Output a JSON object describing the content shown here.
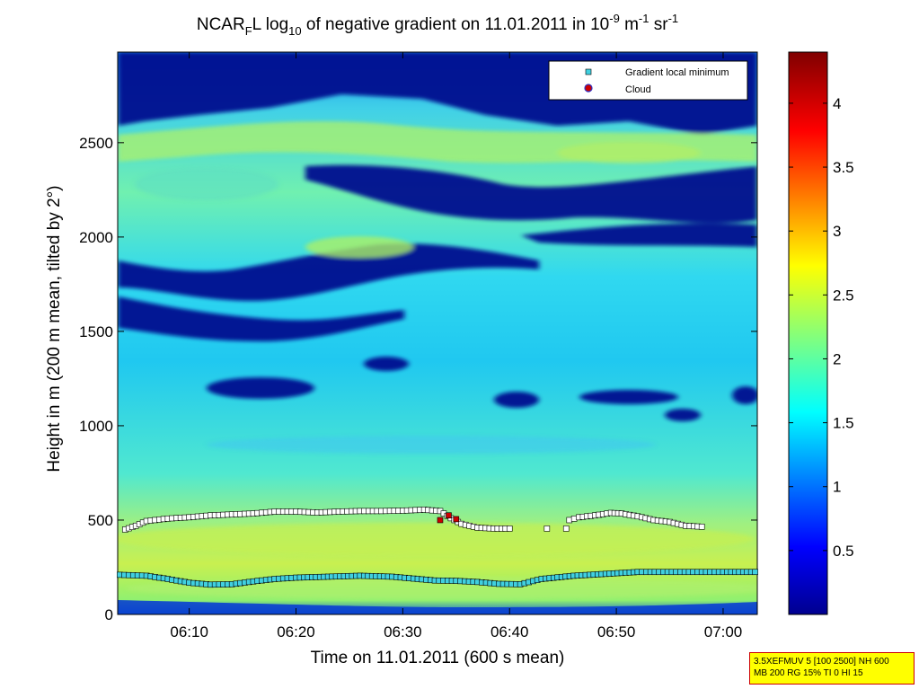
{
  "chart_data": {
    "type": "heatmap",
    "title": {
      "prefix": "NCAR",
      "sub1": "F",
      "mid": "L log",
      "sub2": "10",
      "suffix": " of negative gradient on 11.01.2011 in 10",
      "sup1": "-9",
      "unit1": " m",
      "sup2": "-1",
      "unit2": " sr",
      "sup3": "-1"
    },
    "xlabel": "Time on 11.01.2011 (600 s mean)",
    "ylabel": "Height in m (200 m mean, tilted by 2°)",
    "xlim_minutes": [
      363.3,
      423.2
    ],
    "ylim": [
      0,
      2980
    ],
    "x_ticks": [
      {
        "minutes": 370,
        "label": "06:10"
      },
      {
        "minutes": 380,
        "label": "06:20"
      },
      {
        "minutes": 390,
        "label": "06:30"
      },
      {
        "minutes": 400,
        "label": "06:40"
      },
      {
        "minutes": 410,
        "label": "06:50"
      },
      {
        "minutes": 420,
        "label": "07:00"
      }
    ],
    "y_ticks": [
      0,
      500,
      1000,
      1500,
      2000,
      2500
    ],
    "colorbar": {
      "range": [
        0,
        4.4
      ],
      "ticks": [
        "0.5",
        "1",
        "1.5",
        "2",
        "2.5",
        "3",
        "3.5",
        "4"
      ],
      "colormap": "jet"
    },
    "legend": {
      "position": "top-right",
      "entries": [
        {
          "label": "Gradient local minimum",
          "marker": "square",
          "color": "#40d0e0"
        },
        {
          "label": "Cloud",
          "marker": "circle",
          "color": "#cc0000"
        }
      ]
    },
    "low_layer_minimum": [
      {
        "t": 363.5,
        "h": 210
      },
      {
        "t": 366,
        "h": 205
      },
      {
        "t": 368,
        "h": 188
      },
      {
        "t": 370,
        "h": 168
      },
      {
        "t": 372,
        "h": 158
      },
      {
        "t": 374,
        "h": 160
      },
      {
        "t": 376,
        "h": 175
      },
      {
        "t": 378,
        "h": 188
      },
      {
        "t": 380,
        "h": 195
      },
      {
        "t": 383,
        "h": 200
      },
      {
        "t": 386,
        "h": 205
      },
      {
        "t": 389,
        "h": 200
      },
      {
        "t": 391,
        "h": 190
      },
      {
        "t": 393,
        "h": 180
      },
      {
        "t": 395,
        "h": 178
      },
      {
        "t": 397,
        "h": 172
      },
      {
        "t": 399,
        "h": 162
      },
      {
        "t": 401,
        "h": 160
      },
      {
        "t": 403,
        "h": 188
      },
      {
        "t": 406,
        "h": 205
      },
      {
        "t": 409,
        "h": 215
      },
      {
        "t": 412,
        "h": 225
      },
      {
        "t": 416,
        "h": 225
      },
      {
        "t": 420,
        "h": 225
      },
      {
        "t": 423,
        "h": 225
      }
    ],
    "upper_minimum_segment1": [
      {
        "t": 364,
        "h": 450
      },
      {
        "t": 365,
        "h": 470
      },
      {
        "t": 366,
        "h": 495
      },
      {
        "t": 368,
        "h": 508
      },
      {
        "t": 370,
        "h": 515
      },
      {
        "t": 372,
        "h": 525
      },
      {
        "t": 374,
        "h": 530
      },
      {
        "t": 376,
        "h": 535
      },
      {
        "t": 378,
        "h": 545
      },
      {
        "t": 380,
        "h": 545
      },
      {
        "t": 382,
        "h": 540
      },
      {
        "t": 384,
        "h": 545
      },
      {
        "t": 386,
        "h": 548
      },
      {
        "t": 388,
        "h": 548
      },
      {
        "t": 390,
        "h": 550
      },
      {
        "t": 392,
        "h": 555
      },
      {
        "t": 393.5,
        "h": 548
      },
      {
        "t": 394.5,
        "h": 510
      },
      {
        "t": 395.5,
        "h": 480
      },
      {
        "t": 397,
        "h": 460
      },
      {
        "t": 398.5,
        "h": 455
      },
      {
        "t": 400,
        "h": 455
      }
    ],
    "upper_minimum_isolated": [
      {
        "t": 403.5,
        "h": 455
      },
      {
        "t": 405.3,
        "h": 455
      }
    ],
    "upper_minimum_segment2": [
      {
        "t": 405.6,
        "h": 500
      },
      {
        "t": 406.5,
        "h": 515
      },
      {
        "t": 408,
        "h": 525
      },
      {
        "t": 409.5,
        "h": 538
      },
      {
        "t": 410.5,
        "h": 535
      },
      {
        "t": 412,
        "h": 520
      },
      {
        "t": 413.5,
        "h": 500
      },
      {
        "t": 415,
        "h": 490
      },
      {
        "t": 416.5,
        "h": 470
      },
      {
        "t": 418,
        "h": 465
      }
    ],
    "cloud_points": [
      {
        "t": 393.5,
        "h": 500
      },
      {
        "t": 394.3,
        "h": 525
      },
      {
        "t": 395,
        "h": 505
      }
    ]
  },
  "info_box": {
    "line1": "3.5XEFMUV 5 [100 2500] NH 600",
    "line2": "MB 200 RG 15% TI 0 HI 15"
  }
}
